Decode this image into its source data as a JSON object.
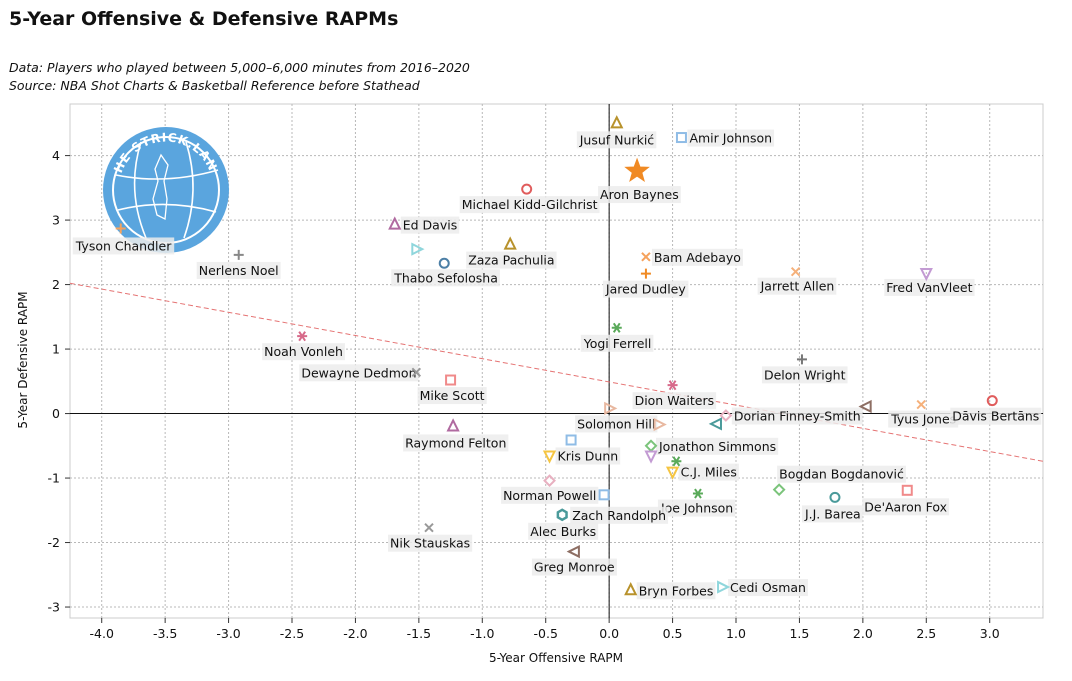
{
  "header": {
    "title": "5-Year Offensive & Defensive RAPMs",
    "subtitle_1": "Data: Players who played between 5,000–6,000 minutes from 2016–2020",
    "subtitle_2": "Source: NBA Shot Charts & Basketball Reference before Stathead"
  },
  "logo": {
    "text": "THE STRICK.LAND",
    "color": "#5aa5de"
  },
  "chart_data": {
    "type": "scatter",
    "xlabel": "5-Year Offensive RAPM",
    "ylabel": "5-Year Defensive RAPM",
    "xlim": [
      -4.25,
      3.42
    ],
    "ylim": [
      -3.17,
      4.8
    ],
    "xticks": [
      -4.0,
      -3.5,
      -3.0,
      -2.5,
      -2.0,
      -1.5,
      -1.0,
      -0.5,
      0.0,
      0.5,
      1.0,
      1.5,
      2.0,
      2.5,
      3.0
    ],
    "xtick_labels": [
      "-4.0",
      "-3.5",
      "-3.0",
      "-2.5",
      "-2.0",
      "-1.5",
      "-1.0",
      "-0.5",
      "0.0",
      "0.5",
      "1.0",
      "1.5",
      "2.0",
      "2.5",
      "3.0"
    ],
    "yticks": [
      -3,
      -2,
      -1,
      0,
      1,
      2,
      3,
      4
    ],
    "ytick_labels": [
      "-3",
      "-2",
      "-1",
      "0",
      "1",
      "2",
      "3",
      "4"
    ],
    "grid": true,
    "trendline": {
      "x": [
        -4.25,
        3.42
      ],
      "y": [
        2.02,
        -0.74
      ],
      "color": "#e57373",
      "style": "dashed"
    },
    "points": [
      {
        "name": "Jusuf Nurkić",
        "x": 0.06,
        "y": 4.5,
        "marker": "triangle",
        "color": "#b8922c",
        "label_dx": -37,
        "label_dy": 21
      },
      {
        "name": "Amir Johnson",
        "x": 0.57,
        "y": 4.28,
        "marker": "square",
        "color": "#8fbce6",
        "label_dx": 8,
        "label_dy": 5
      },
      {
        "name": "Aron Baynes",
        "x": 0.22,
        "y": 3.76,
        "marker": "star",
        "color": "#f08a24",
        "label_dx": -37,
        "label_dy": 28
      },
      {
        "name": "Michael Kidd-Gilchrist",
        "x": -0.65,
        "y": 3.48,
        "marker": "circle",
        "color": "#e05c5c",
        "label_dx": -65,
        "label_dy": 20
      },
      {
        "name": "Ed Davis",
        "x": -1.69,
        "y": 2.93,
        "marker": "triangle",
        "color": "#b06aa0",
        "label_dx": 8,
        "label_dy": 5
      },
      {
        "name": "Tyson Chandler",
        "x": -3.85,
        "y": 2.87,
        "marker": "plus",
        "color": "#f5a25d",
        "label_dx": -45,
        "label_dy": 22
      },
      {
        "name": "Zaza Pachulia",
        "x": -0.78,
        "y": 2.62,
        "marker": "triangle",
        "color": "#b8922c",
        "label_dx": -42,
        "label_dy": 20
      },
      {
        "name": "Thabo Sefolosha",
        "x": -1.3,
        "y": 2.33,
        "marker": "circle",
        "color": "#4c7fa6",
        "label_dx": -50,
        "label_dy": 19
      },
      {
        "name": "Nerlens Noel",
        "x": -2.92,
        "y": 2.46,
        "marker": "plus",
        "color": "#888888",
        "label_dx": -40,
        "label_dy": 20
      },
      {
        "name": "Bam Adebayo",
        "x": 0.29,
        "y": 2.43,
        "marker": "x",
        "color": "#f5a25d",
        "label_dx": 8,
        "label_dy": 5
      },
      {
        "name": "Jared Dudley",
        "x": 0.29,
        "y": 2.17,
        "marker": "plus",
        "color": "#f08a24",
        "label_dx": -40,
        "label_dy": 20
      },
      {
        "name": "Jarrett Allen",
        "x": 1.47,
        "y": 2.2,
        "marker": "x",
        "color": "#f5b07a",
        "label_dx": -35,
        "label_dy": 19
      },
      {
        "name": "Fred VanVleet",
        "x": 2.5,
        "y": 2.18,
        "marker": "triangle-down",
        "color": "#c39bd3",
        "label_dx": -40,
        "label_dy": 19
      },
      {
        "name": "Noah Vonleh",
        "x": -2.42,
        "y": 1.2,
        "marker": "asterisk",
        "color": "#d76a8a",
        "label_dx": -38,
        "label_dy": 20
      },
      {
        "name": "Yogi Ferrell",
        "x": 0.06,
        "y": 1.33,
        "marker": "asterisk",
        "color": "#5aaa5a",
        "label_dx": -33,
        "label_dy": 20
      },
      {
        "name": "Dewayne Dedmon",
        "x": -1.52,
        "y": 0.64,
        "marker": "x",
        "color": "#999999",
        "label_dx": -115,
        "label_dy": 5
      },
      {
        "name": "Delon Wright",
        "x": 1.52,
        "y": 0.84,
        "marker": "plus",
        "color": "#777777",
        "label_dx": -38,
        "label_dy": 20
      },
      {
        "name": "Mike Scott",
        "x": -1.25,
        "y": 0.52,
        "marker": "square",
        "color": "#f08a8a",
        "label_dx": -31,
        "label_dy": 20
      },
      {
        "name": "Dion Waiters",
        "x": 0.5,
        "y": 0.44,
        "marker": "asterisk",
        "color": "#d76a8a",
        "label_dx": -38,
        "label_dy": 20
      },
      {
        "name": "Solomon Hill",
        "x": 0.0,
        "y": 0.08,
        "marker": "triangle-right",
        "color": "#e8b8a0",
        "label_dx": -32,
        "label_dy": 20
      },
      {
        "name": "Dorian Finney-Smith",
        "x": 0.92,
        "y": -0.03,
        "marker": "diamond",
        "color": "#e8b0c0",
        "label_dx": 8,
        "label_dy": 5
      },
      {
        "name": "Tyus Jones",
        "x": 2.46,
        "y": 0.14,
        "marker": "x",
        "color": "#f5b07a",
        "label_dx": -30,
        "label_dy": 19
      },
      {
        "name": "Dāvis Bertāns",
        "x": 3.02,
        "y": 0.2,
        "marker": "circle",
        "color": "#e05c5c",
        "label_dx": -40,
        "label_dy": 20
      },
      {
        "name": "",
        "x": 2.03,
        "y": 0.11,
        "marker": "triangle-left",
        "color": "#8d6e63",
        "label_dx": 0,
        "label_dy": 0
      },
      {
        "name": "",
        "x": 0.85,
        "y": -0.16,
        "marker": "triangle-left",
        "color": "#4a9a9a",
        "label_dx": 0,
        "label_dy": 0
      },
      {
        "name": "",
        "x": 0.39,
        "y": -0.17,
        "marker": "triangle-right",
        "color": "#e8b8a0",
        "label_dx": 0,
        "label_dy": 0
      },
      {
        "name": "Raymond Felton",
        "x": -1.23,
        "y": -0.2,
        "marker": "triangle",
        "color": "#b06aa0",
        "label_dx": -48,
        "label_dy": 21
      },
      {
        "name": "",
        "x": -0.3,
        "y": -0.41,
        "marker": "square",
        "color": "#8fbce6",
        "label_dx": 0,
        "label_dy": 0
      },
      {
        "name": "Jonathon Simmons",
        "x": 0.33,
        "y": -0.5,
        "marker": "diamond",
        "color": "#7bc47b",
        "label_dx": 8,
        "label_dy": 5
      },
      {
        "name": "",
        "x": 0.33,
        "y": -0.65,
        "marker": "triangle-down",
        "color": "#c39bd3",
        "label_dx": 0,
        "label_dy": 0
      },
      {
        "name": "Kris Dunn",
        "x": -0.47,
        "y": -0.65,
        "marker": "triangle-down",
        "color": "#f5c542",
        "label_dx": 8,
        "label_dy": 5
      },
      {
        "name": "",
        "x": 0.53,
        "y": -0.74,
        "marker": "asterisk",
        "color": "#5aaa5a",
        "label_dx": 0,
        "label_dy": 0
      },
      {
        "name": "C.J. Miles",
        "x": 0.5,
        "y": -0.9,
        "marker": "triangle-down",
        "color": "#f5c542",
        "label_dx": 8,
        "label_dy": 5
      },
      {
        "name": "Bogdan Bogdanović",
        "x": 1.34,
        "y": -1.18,
        "marker": "diamond",
        "color": "#7bc47b",
        "label_dx": 0,
        "label_dy": -11
      },
      {
        "name": "De'Aaron Fox",
        "x": 2.35,
        "y": -1.19,
        "marker": "square",
        "color": "#f08a8a",
        "label_dx": -43,
        "label_dy": 21
      },
      {
        "name": "J.J. Barea",
        "x": 1.78,
        "y": -1.3,
        "marker": "circle",
        "color": "#4a9a9a",
        "label_dx": -30,
        "label_dy": 21
      },
      {
        "name": "",
        "x": -0.47,
        "y": -1.04,
        "marker": "diamond",
        "color": "#e8b0c0",
        "label_dx": 0,
        "label_dy": 0
      },
      {
        "name": "Norman Powell",
        "x": -0.04,
        "y": -1.26,
        "marker": "square",
        "color": "#8fbce6",
        "label_dx": -101,
        "label_dy": 5
      },
      {
        "name": "Joe Johnson",
        "x": 0.7,
        "y": -1.24,
        "marker": "asterisk",
        "color": "#5aaa5a",
        "label_dx": -37,
        "label_dy": 19
      },
      {
        "name": "Zach Randolph",
        "x": -0.37,
        "y": -1.57,
        "marker": "hexagon",
        "color": "#4a9a9a",
        "label_dx": 10,
        "label_dy": 5
      },
      {
        "name": "Alec Burks",
        "x": -0.37,
        "y": -1.57,
        "marker": "none",
        "color": "#e8b0c0",
        "label_dx": -32,
        "label_dy": 21
      },
      {
        "name": "Nik Stauskas",
        "x": -1.42,
        "y": -1.77,
        "marker": "x",
        "color": "#999999",
        "label_dx": -39,
        "label_dy": 20
      },
      {
        "name": "Greg Monroe",
        "x": -0.27,
        "y": -2.14,
        "marker": "triangle-left",
        "color": "#8d6e63",
        "label_dx": -41,
        "label_dy": 20
      },
      {
        "name": "Bryn Forbes",
        "x": 0.17,
        "y": -2.74,
        "marker": "triangle",
        "color": "#b8922c",
        "label_dx": 8,
        "label_dy": 5
      },
      {
        "name": "Cedi Osman",
        "x": 0.89,
        "y": -2.69,
        "marker": "triangle-right",
        "color": "#8fd6dc",
        "label_dx": 8,
        "label_dy": 5
      },
      {
        "name": "",
        "x": -1.52,
        "y": 2.55,
        "marker": "triangle-right",
        "color": "#8fd6dc",
        "label_dx": 0,
        "label_dy": 0
      }
    ]
  }
}
